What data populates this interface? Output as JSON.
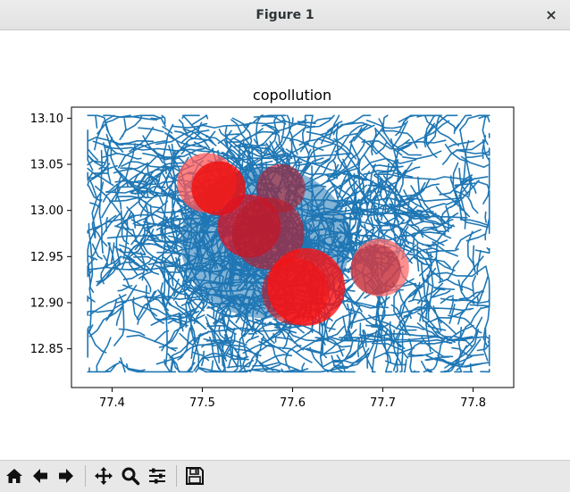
{
  "window": {
    "title": "Figure 1",
    "close_glyph": "×"
  },
  "toolbar": {
    "buttons": [
      {
        "name": "home",
        "icon": "home-icon"
      },
      {
        "name": "back",
        "icon": "arrow-left-icon"
      },
      {
        "name": "forward",
        "icon": "arrow-right-icon"
      },
      {
        "name": "pan",
        "icon": "move-icon"
      },
      {
        "name": "zoom",
        "icon": "magnifier-icon"
      },
      {
        "name": "configure-subplots",
        "icon": "sliders-icon"
      },
      {
        "name": "save",
        "icon": "floppy-disk-icon"
      }
    ]
  },
  "chart_data": {
    "type": "scatter",
    "title": "copollution",
    "xlabel": "",
    "ylabel": "",
    "xlim": [
      77.355,
      77.845
    ],
    "ylim": [
      12.808,
      13.112
    ],
    "x_ticks": [
      77.4,
      77.5,
      77.6,
      77.7,
      77.8
    ],
    "x_tick_labels": [
      "77.4",
      "77.5",
      "77.6",
      "77.7",
      "77.8"
    ],
    "y_ticks": [
      12.85,
      12.9,
      12.95,
      13.0,
      13.05,
      13.1
    ],
    "y_tick_labels": [
      "12.85",
      "12.90",
      "12.95",
      "13.00",
      "13.05",
      "13.10"
    ],
    "grid": false,
    "legend": "none",
    "road_network": {
      "description": "dense road network lines",
      "color": "#1f77b4",
      "extent_x": [
        77.373,
        77.818
      ],
      "extent_y": [
        12.825,
        13.103
      ]
    },
    "pollution_circles": [
      {
        "x": 77.505,
        "y": 13.03,
        "radius_deg": 0.033,
        "color": "#ff5555",
        "alpha": 0.75
      },
      {
        "x": 77.518,
        "y": 13.024,
        "radius_deg": 0.03,
        "color": "#ee1111",
        "alpha": 0.85
      },
      {
        "x": 77.587,
        "y": 13.024,
        "radius_deg": 0.027,
        "color": "#aa2233",
        "alpha": 0.65
      },
      {
        "x": 77.552,
        "y": 12.983,
        "radius_deg": 0.035,
        "color": "#dd1122",
        "alpha": 0.75
      },
      {
        "x": 77.573,
        "y": 12.975,
        "radius_deg": 0.04,
        "color": "#bb1a2a",
        "alpha": 0.65
      },
      {
        "x": 77.603,
        "y": 12.912,
        "radius_deg": 0.037,
        "color": "#bb1a2a",
        "alpha": 0.65
      },
      {
        "x": 77.615,
        "y": 12.917,
        "radius_deg": 0.043,
        "color": "#ff1111",
        "alpha": 0.8
      },
      {
        "x": 77.697,
        "y": 12.938,
        "radius_deg": 0.032,
        "color": "#ff6a6a",
        "alpha": 0.75
      },
      {
        "x": 77.692,
        "y": 12.936,
        "radius_deg": 0.028,
        "color": "#aa2233",
        "alpha": 0.55
      }
    ]
  }
}
